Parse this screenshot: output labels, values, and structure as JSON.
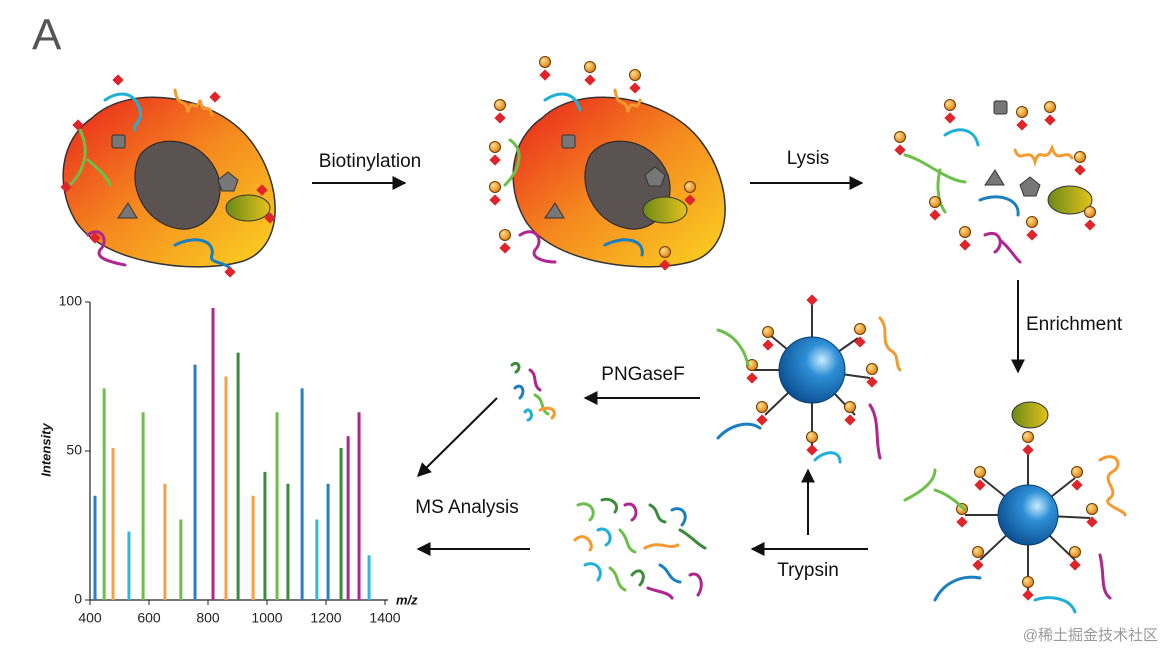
{
  "panel_label": "A",
  "steps": [
    "Biotinylation",
    "Lysis",
    "Enrichment",
    "PNGaseF",
    "Trypsin",
    "MS Analysis"
  ],
  "watermark": "@稀土掘金技术社区",
  "chart_data": {
    "type": "bar",
    "x_label": "m/z",
    "y_label": "Intensity",
    "x": [
      417,
      448,
      478,
      532,
      580,
      654,
      708,
      756,
      817,
      861,
      902,
      953,
      993,
      1034,
      1071,
      1119,
      1169,
      1207,
      1251,
      1275,
      1312,
      1346
    ],
    "values": [
      35,
      71,
      51,
      23,
      63,
      39,
      27,
      79,
      98,
      75,
      83,
      35,
      43,
      63,
      39,
      71,
      27,
      39,
      51,
      55,
      63,
      15
    ],
    "colors": [
      "#2a7fc0",
      "#6cc04a",
      "#f5a042",
      "#2bb8e0",
      "#6cc04a",
      "#f5a042",
      "#6cc04a",
      "#2a7fc0",
      "#b0258f",
      "#f5a042",
      "#3a8c3a",
      "#f5a042",
      "#3a8c3a",
      "#6cc04a",
      "#3a8c3a",
      "#2a7fc0",
      "#2bb8e0",
      "#2a7fc0",
      "#3a8c3a",
      "#b0258f",
      "#b0258f",
      "#2bb8e0"
    ],
    "xlim": [
      400,
      1400
    ],
    "xticks": [
      400,
      600,
      800,
      1000,
      1200,
      1400
    ],
    "ylim": [
      0,
      100
    ],
    "yticks": [
      0,
      50,
      100
    ]
  }
}
